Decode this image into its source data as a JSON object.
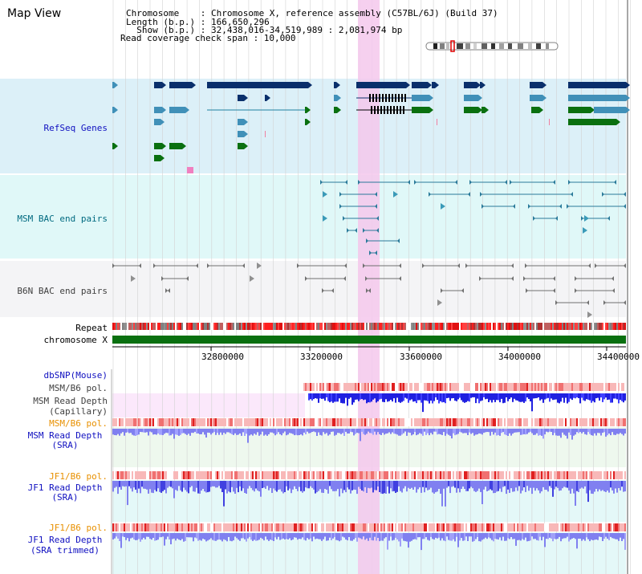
{
  "view_title": "Map View",
  "info_lines": [
    "Chromosome    : Chromosome X, reference assembly (C57BL/6J) (Build 37)",
    "Length (b.p.) : 166,650,296",
    "  Show (b.p.) : 32,438,016-34,519,989 : 2,081,974 bp",
    "Read coverage check span : 10,000"
  ],
  "tracks": {
    "refseq": "RefSeq Genes",
    "msm_bac": "MSM BAC end pairs",
    "b6n_bac": "B6N BAC end pairs",
    "repeat": "Repeat",
    "chromosome": "chromosome X",
    "dbsnp": "dbSNP(Mouse)",
    "msm_b6_pol_1": "MSM/B6 pol.",
    "msm_depth_cap_1": "MSM Read Depth",
    "msm_depth_cap_2": "(Capillary)",
    "msm_b6_pol_2": "MSM/B6 pol.",
    "msm_depth_sra_1": "MSM Read Depth",
    "msm_depth_sra_2": "(SRA)",
    "jf1_b6_pol_1": "JF1/B6 pol.",
    "jf1_depth_sra_1": "JF1 Read Depth",
    "jf1_depth_sra_2": "(SRA)",
    "jf1_b6_pol_2": "JF1/B6 pol.",
    "jf1_depth_trim_1": "JF1 Read Depth",
    "jf1_depth_trim_2": "(SRA trimmed)"
  },
  "axis_ticks": [
    "32800000",
    "33200000",
    "33600000",
    "34000000",
    "34400000"
  ],
  "colors": {
    "gene_dark": "#0a2f6b",
    "gene_mid": "#4090b8",
    "gene_green": "#0a7010",
    "highlight": "#f4c8ec",
    "refseq_bg": "#dcf0f8",
    "bac_bg": "#e0f8f8",
    "depth_blue": "#2020e0",
    "depth_light": "#8080f0",
    "pol_red": "#f07070"
  }
}
